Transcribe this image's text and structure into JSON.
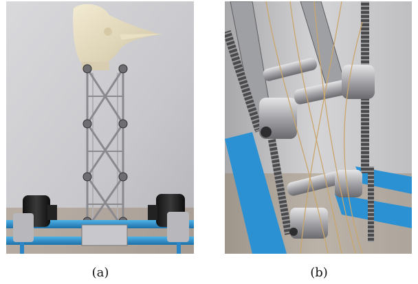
{
  "figure": {
    "panels": [
      {
        "id": "a",
        "caption": "(a)"
      },
      {
        "id": "b",
        "caption": "(b)"
      }
    ]
  }
}
